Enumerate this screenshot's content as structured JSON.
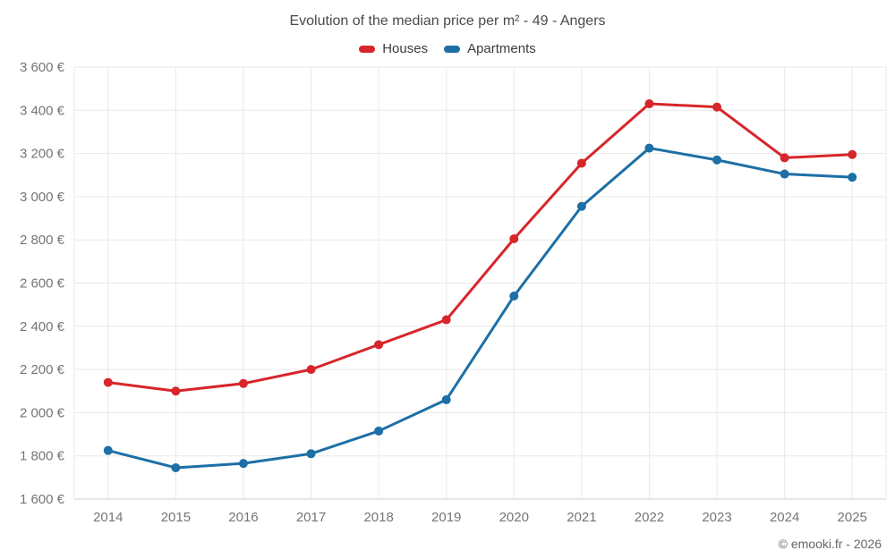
{
  "header": {
    "title": "Evolution of the median price per m² - 49 - Angers"
  },
  "footer": {
    "copyright": "© emooki.fr - 2026"
  },
  "colors": {
    "background": "#ffffff",
    "grid": "#e9e9e9",
    "axis": "#cfcfcf",
    "tick_text": "#757575",
    "title_text": "#4a4a4a",
    "legend_text": "#3c3c3c",
    "copyright_text": "#666666",
    "houses": "#d7262b",
    "apartments": "#1d6fa6"
  },
  "chart_data": {
    "type": "line",
    "title": "Evolution of the median price per m² - 49 - Angers",
    "x_labels": [
      "2014",
      "2015",
      "2016",
      "2017",
      "2018",
      "2019",
      "2020",
      "2021",
      "2022",
      "2023",
      "2024",
      "2025"
    ],
    "series": [
      {
        "name": "Houses",
        "color": "#d7262b",
        "values": [
          2140,
          2100,
          2135,
          2200,
          2315,
          2430,
          2805,
          3155,
          3430,
          3415,
          3180,
          3195
        ]
      },
      {
        "name": "Apartments",
        "color": "#1d6fa6",
        "values": [
          1825,
          1745,
          1765,
          1810,
          1915,
          2060,
          2540,
          2955,
          3225,
          3170,
          3105,
          3090
        ]
      }
    ],
    "ylim": [
      1600,
      3600
    ],
    "y_ticks": [
      1600,
      1800,
      2000,
      2200,
      2400,
      2600,
      2800,
      3000,
      3200,
      3400,
      3600
    ],
    "y_tick_labels": [
      "1 600 €",
      "1 800 €",
      "2 000 €",
      "2 200 €",
      "2 400 €",
      "2 600 €",
      "2 800 €",
      "3 000 €",
      "3 200 €",
      "3 400 €",
      "3 600 €"
    ],
    "grid": true,
    "legend_position": "top",
    "marker": "circle",
    "currency_suffix": "€"
  }
}
